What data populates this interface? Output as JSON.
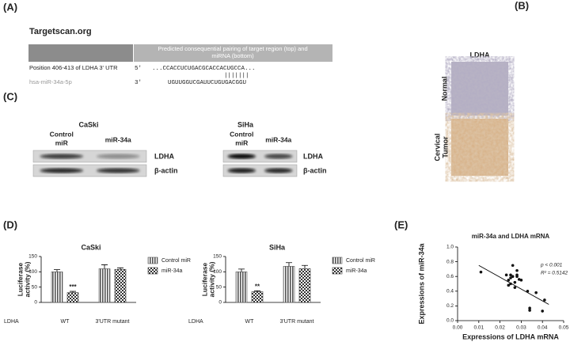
{
  "panel_labels": [
    "(A)",
    "(B)",
    "(C)",
    "(D)",
    "(E)"
  ],
  "targetscan": {
    "title": "Targetscan.org",
    "header": [
      "Predicted consequential pairing of target region (top) and",
      "miRNA (bottom)"
    ],
    "rows": [
      {
        "label": "Position 406-413 of LDHA 3' UTR",
        "end": "5'",
        "seq": "...CCACCUCUGACGCACCACUGCCA..."
      },
      {
        "label": "hsa-miR-34a-5p",
        "end": "3'",
        "seq": "UGUUGGUCGAUUCUGUGACGGU"
      }
    ],
    "pairing": "|||||||"
  },
  "ihc": {
    "title": "LDHA",
    "rows": [
      [
        "Normal"
      ],
      [
        "Cervical",
        "Tumor"
      ]
    ]
  },
  "western": [
    {
      "cell": "CaSki",
      "lanes": [
        [
          "Control",
          "miR"
        ],
        [
          "miR-34a"
        ]
      ],
      "bands": [
        "LDHA",
        "β-actin"
      ]
    },
    {
      "cell": "SiHa",
      "lanes": [
        [
          "Control",
          "miR"
        ],
        [
          "miR-34a"
        ]
      ],
      "bands": [
        "LDHA",
        "β-actin"
      ]
    }
  ],
  "chart_data": [
    {
      "type": "bar",
      "title": "CaSki",
      "y_label": [
        "Luciferase",
        "activity (%)"
      ],
      "x_row_label": "LDHA",
      "categories": [
        "WT",
        "3'UTR mutant"
      ],
      "ylim": [
        0,
        150
      ],
      "yticks": [
        0,
        50,
        100,
        150
      ],
      "series": [
        {
          "name": "Control miR",
          "color": "#555555",
          "values": [
            100,
            110
          ],
          "errors": [
            7,
            13
          ],
          "significance": [
            null,
            null
          ]
        },
        {
          "name": "miR-34a",
          "color": "#333333",
          "values": [
            32,
            108
          ],
          "errors": [
            4,
            5
          ],
          "significance": [
            "***",
            null
          ]
        }
      ]
    },
    {
      "type": "bar",
      "title": "SiHa",
      "y_label": [
        "Luciferase",
        "activity (%)"
      ],
      "x_row_label": "LDHA",
      "categories": [
        "WT",
        "3'UTR mutant"
      ],
      "ylim": [
        0,
        150
      ],
      "yticks": [
        0,
        50,
        100,
        150
      ],
      "series": [
        {
          "name": "Control miR",
          "color": "#555555",
          "values": [
            100,
            118
          ],
          "errors": [
            9,
            12
          ],
          "significance": [
            null,
            null
          ]
        },
        {
          "name": "miR-34a",
          "color": "#333333",
          "values": [
            35,
            110
          ],
          "errors": [
            3,
            11
          ],
          "significance": [
            "**",
            null
          ]
        }
      ]
    },
    {
      "type": "scatter",
      "title": "miR-34a and LDHA mRNA",
      "x_label": "Expressions of LDHA mRNA",
      "y_label": "Expressions of miR-34a",
      "xlim": [
        0,
        0.05
      ],
      "xticks": [
        {
          "value": 0,
          "label": "0.00"
        },
        0.01,
        0.02,
        0.03,
        0.04,
        0.05
      ],
      "ylim": [
        0,
        1
      ],
      "yticks": [
        {
          "value": 0,
          "label": "0.0"
        },
        0.2,
        0.4,
        0.6,
        0.8,
        {
          "value": 1,
          "label": "1.0"
        }
      ],
      "annotations": [
        "p < 0.001",
        "R² = 0.5142"
      ],
      "color": "#111111",
      "x": [
        0.011,
        0.023,
        0.024,
        0.025,
        0.026,
        0.026,
        0.027,
        0.028,
        0.027,
        0.028,
        0.029,
        0.024,
        0.025,
        0.03,
        0.033,
        0.034,
        0.034,
        0.037,
        0.04,
        0.041,
        0.028,
        0.025
      ],
      "y": [
        0.66,
        0.62,
        0.55,
        0.58,
        0.75,
        0.6,
        0.52,
        0.68,
        0.45,
        0.62,
        0.56,
        0.48,
        0.5,
        0.55,
        0.4,
        0.17,
        0.14,
        0.38,
        0.13,
        0.28,
        0.6,
        0.62
      ],
      "trend_line": {
        "x": [
          0.01,
          0.043
        ],
        "y": [
          0.75,
          0.22
        ]
      }
    }
  ]
}
